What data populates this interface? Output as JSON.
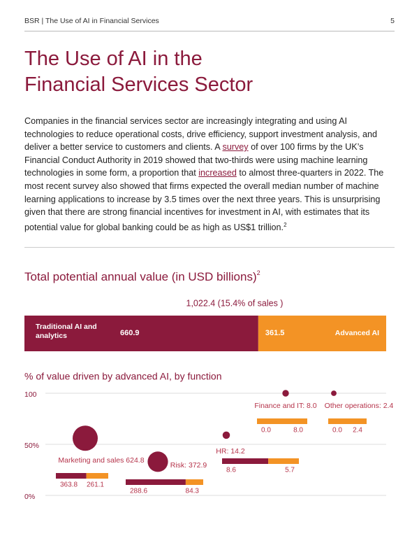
{
  "header": {
    "running_title": "BSR | The Use of AI in Financial Services",
    "page_number": "5"
  },
  "title_lines": [
    "The Use of AI in the",
    "Financial Services Sector"
  ],
  "body": {
    "runs": [
      "Companies in the financial services sector are increasingly integrating and using AI technologies to reduce operational costs, drive efficiency, support investment analysis, and deliver a better service to customers and clients. A ",
      "survey",
      " of over 100 firms by the UK’s Financial Conduct Authority in 2019 showed that two-thirds were using machine learning technologies in some form, a proportion that ",
      "increased",
      " to almost three-quarters in 2022. The most recent survey also showed that firms expected the overall median number of machine learning applications to increase by 3.5 times over the next three years. This is unsurprising given that there are strong financial incentives for investment in AI, with estimates that its potential value for global banking could be as high as US$1 trillion."
    ],
    "footnote": "2"
  },
  "chart_data": [
    {
      "type": "stacked-bar",
      "title": "Total potential annual value (in USD billions)",
      "title_footnote": "2",
      "total_label": "1,022.4 (15.4% of sales )",
      "xlim": [
        0,
        1022.4
      ],
      "series": [
        {
          "name": "Traditional AI and analytics",
          "color": "#8b1a3c",
          "values": [
            660.9
          ]
        },
        {
          "name": "Advanced AI",
          "color": "#f39325",
          "values": [
            361.5
          ]
        }
      ]
    },
    {
      "type": "bubble",
      "title": "% of value driven by advanced AI, by function",
      "ylim": [
        0,
        100
      ],
      "yticks": [
        {
          "value": 0,
          "label": "0%"
        },
        {
          "value": 50,
          "label": "50%"
        },
        100
      ],
      "bubble_color": "#8b1a3c",
      "split_colors": [
        "#8b1a3c",
        "#f39325"
      ],
      "points": [
        {
          "label": "Marketing and sales 624.8",
          "y": 56,
          "size": 624.8,
          "values": [
            363.8,
            261.1
          ],
          "value_labels": [
            "363.8",
            "261.1"
          ]
        },
        {
          "label": "Risk: 372.9",
          "y": 33,
          "size": 372.9,
          "values": [
            288.6,
            84.3
          ],
          "value_labels": [
            "288.6",
            "84.3"
          ]
        },
        {
          "label": "HR: 14.2",
          "y": 59,
          "size": 14.2,
          "values": [
            8.6,
            5.7
          ],
          "value_labels": [
            "8.6",
            "5.7"
          ]
        },
        {
          "label": "Finance and IT: 8.0",
          "y": 100,
          "size": 8.0,
          "values": [
            0.0,
            8.0
          ],
          "value_labels": [
            "0.0",
            "8.0"
          ]
        },
        {
          "label": "Other operations: 2.4",
          "y": 100,
          "size": 2.4,
          "values": [
            0.0,
            2.4
          ],
          "value_labels": [
            "0.0",
            "2.4"
          ]
        }
      ]
    }
  ]
}
